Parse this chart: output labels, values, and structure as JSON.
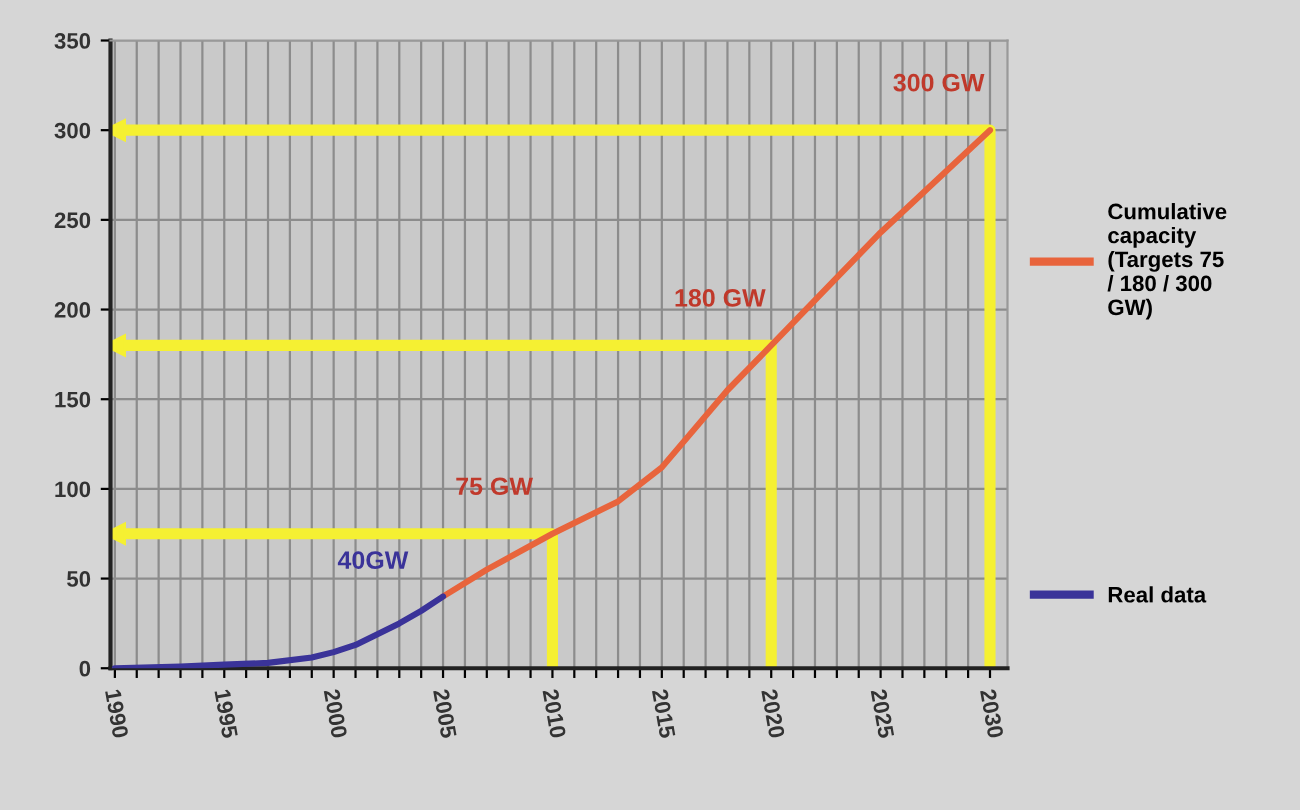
{
  "chart_data": {
    "type": "line",
    "series": [
      {
        "name": "Cumulative capacity (Targets 75 / 180 / 300 GW)",
        "color": "#e8643c",
        "x": [
          2005,
          2007,
          2010,
          2013,
          2015,
          2018,
          2020,
          2025,
          2030
        ],
        "values": [
          40,
          55,
          75,
          93,
          112,
          155,
          180,
          243,
          300
        ]
      },
      {
        "name": "Real data",
        "color": "#3a3399",
        "x": [
          1990,
          1993,
          1995,
          1997,
          1999,
          2000,
          2001,
          2002,
          2003,
          2004,
          2005
        ],
        "values": [
          0,
          1,
          2,
          3,
          6,
          9,
          13,
          19,
          25,
          32,
          40
        ]
      },
      {
        "color": "#f5f032",
        "x": [
          1990,
          2010,
          2010
        ],
        "values": [
          75,
          75,
          0
        ]
      },
      {
        "color": "#f5f032",
        "x": [
          1990,
          2020,
          2020
        ],
        "values": [
          180,
          180,
          0
        ]
      },
      {
        "color": "#f5f032",
        "x": [
          1990,
          2030,
          2030
        ],
        "values": [
          300,
          300,
          0
        ]
      }
    ],
    "annotations": [
      {
        "text": "40GW",
        "x": 2005,
        "y": 40
      },
      {
        "text": "75 GW",
        "x": 2010,
        "y": 75
      },
      {
        "text": "180 GW",
        "x": 2020,
        "y": 180
      },
      {
        "text": "300 GW",
        "x": 2030,
        "y": 300
      }
    ],
    "xlim": [
      1989.8,
      2030.8
    ],
    "ylim": [
      0,
      350
    ],
    "xticks": [
      1990,
      {
        "value": 1991,
        "label": null
      },
      {
        "value": 1992,
        "label": null
      },
      {
        "value": 1993,
        "label": null
      },
      {
        "value": 1994,
        "label": null
      },
      1995,
      {
        "value": 1996,
        "label": null
      },
      {
        "value": 1997,
        "label": null
      },
      {
        "value": 1998,
        "label": null
      },
      {
        "value": 1999,
        "label": null
      },
      2000,
      {
        "value": 2001,
        "label": null
      },
      {
        "value": 2002,
        "label": null
      },
      {
        "value": 2003,
        "label": null
      },
      {
        "value": 2004,
        "label": null
      },
      2005,
      {
        "value": 2006,
        "label": null
      },
      {
        "value": 2007,
        "label": null
      },
      {
        "value": 2008,
        "label": null
      },
      {
        "value": 2009,
        "label": null
      },
      2010,
      {
        "value": 2011,
        "label": null
      },
      {
        "value": 2012,
        "label": null
      },
      {
        "value": 2013,
        "label": null
      },
      {
        "value": 2014,
        "label": null
      },
      2015,
      {
        "value": 2016,
        "label": null
      },
      {
        "value": 2017,
        "label": null
      },
      {
        "value": 2018,
        "label": null
      },
      {
        "value": 2019,
        "label": null
      },
      2020,
      {
        "value": 2021,
        "label": null
      },
      {
        "value": 2022,
        "label": null
      },
      {
        "value": 2023,
        "label": null
      },
      {
        "value": 2024,
        "label": null
      },
      2025,
      {
        "value": 2026,
        "label": null
      },
      {
        "value": 2027,
        "label": null
      },
      {
        "value": 2028,
        "label": null
      },
      {
        "value": 2029,
        "label": null
      },
      2030
    ],
    "yticks": [
      0,
      50,
      100,
      150,
      200,
      250,
      300,
      350
    ],
    "grid": true,
    "legend": "right",
    "marker": "none",
    "line_style": "solid"
  }
}
